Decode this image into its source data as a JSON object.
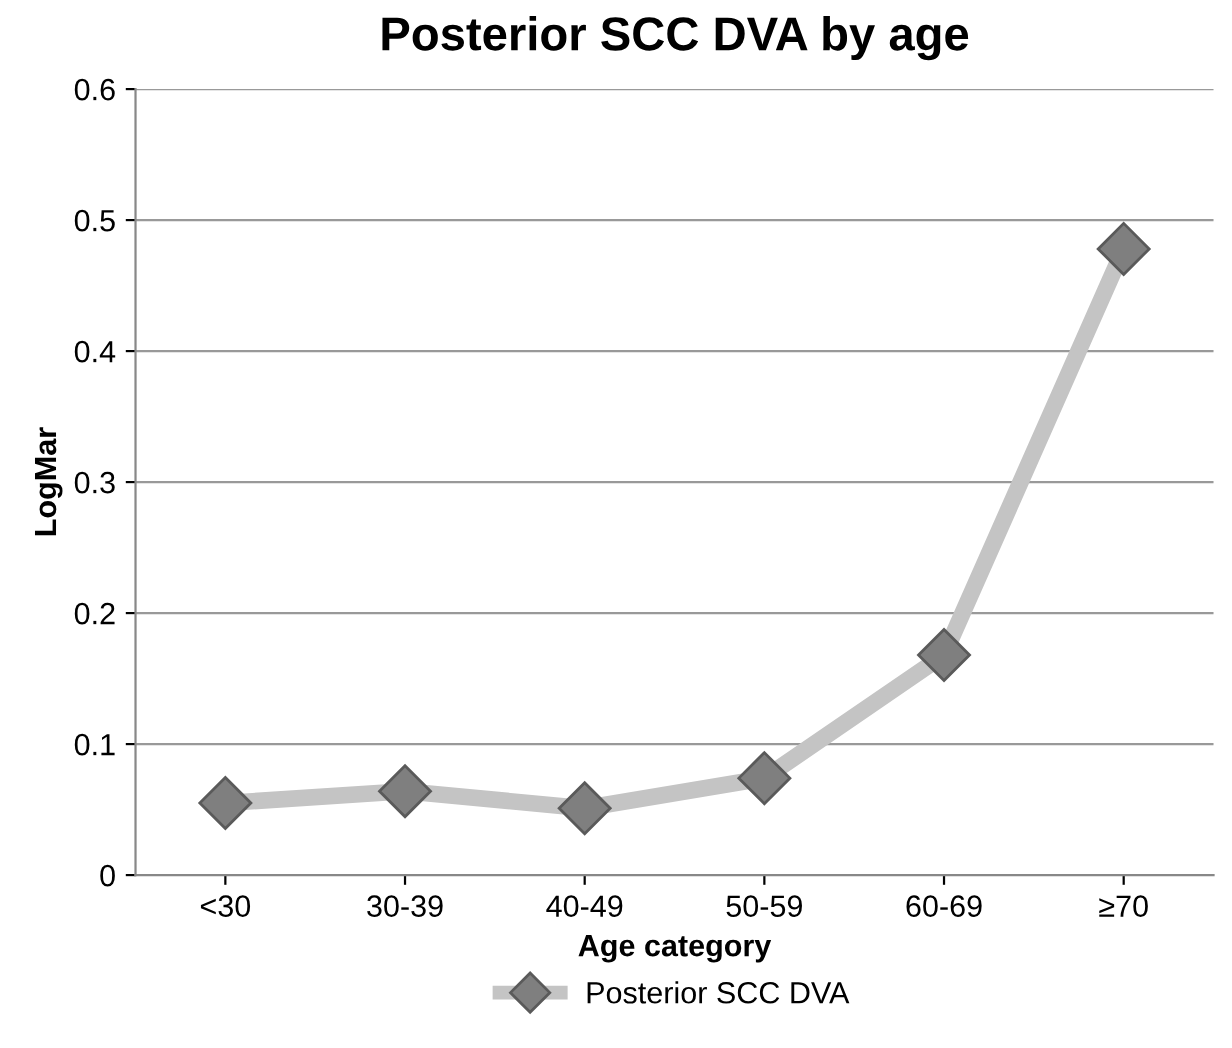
{
  "chart_data": {
    "type": "line",
    "title": "Posterior SCC DVA by age",
    "xlabel": "Age category",
    "ylabel": "LogMar",
    "categories": [
      "<30",
      "30-39",
      "40-49",
      "50-59",
      "60-69",
      "≥70"
    ],
    "series": [
      {
        "name": "Posterior SCC DVA",
        "color": "#c4c4c4",
        "colors": [
          "#7f7f7f",
          "#7f7f7f",
          "#7f7f7f",
          "#7f7f7f",
          "#7f7f7f",
          "#7f7f7f"
        ],
        "values": [
          0.055,
          0.064,
          0.051,
          0.074,
          0.168,
          0.478
        ]
      }
    ],
    "ylim": [
      0,
      0.6
    ],
    "yticks": [
      0,
      0.1,
      0.2,
      0.3,
      0.4,
      0.5,
      0.6
    ],
    "grid": "y",
    "legend": "bottom",
    "marker": "diamond",
    "line_style": "solid"
  }
}
